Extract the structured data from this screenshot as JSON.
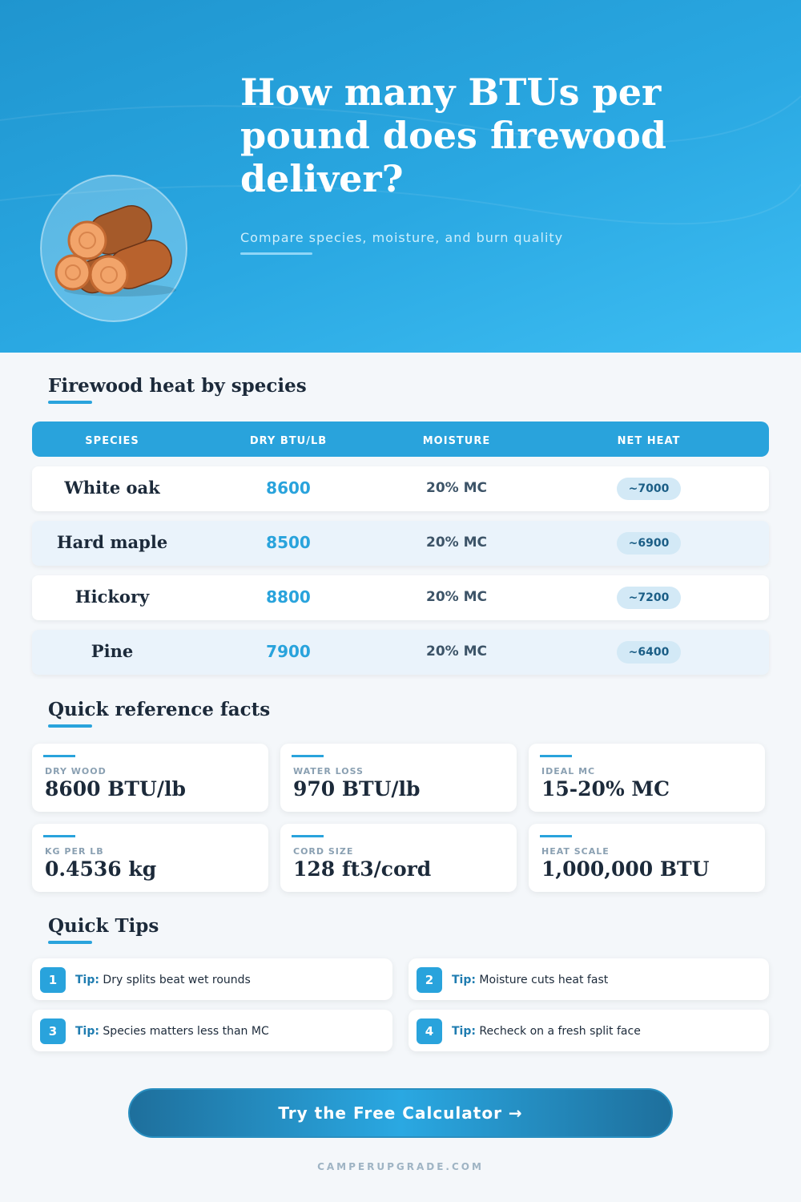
{
  "header": {
    "title": "How many BTUs per pound does firewood deliver?",
    "subtitle": "Compare species, moisture, and burn quality"
  },
  "table": {
    "heading": "Firewood heat by species",
    "columns": [
      "SPECIES",
      "DRY BTU/LB",
      "MOISTURE",
      "NET HEAT"
    ],
    "rows": [
      [
        "White oak",
        8600,
        "20% MC",
        "~7000"
      ],
      [
        "Hard maple",
        8500,
        "20% MC",
        "~6900"
      ],
      [
        "Hickory",
        8800,
        "20% MC",
        "~7200"
      ],
      [
        "Pine",
        7900,
        "20% MC",
        "~6400"
      ]
    ]
  },
  "facts": {
    "heading": "Quick reference facts",
    "items": [
      {
        "label": "DRY WOOD",
        "value": "8600 BTU/lb"
      },
      {
        "label": "WATER LOSS",
        "value": "970 BTU/lb"
      },
      {
        "label": "IDEAL MC",
        "value": "15-20% MC"
      },
      {
        "label": "KG PER LB",
        "value": "0.4536 kg"
      },
      {
        "label": "CORD SIZE",
        "value": "128 ft3/cord"
      },
      {
        "label": "HEAT SCALE",
        "value": "1,000,000 BTU"
      }
    ]
  },
  "tips": {
    "heading": "Quick Tips",
    "items": [
      {
        "number": 1,
        "label": "Tip:",
        "text": "Dry splits beat wet rounds"
      },
      {
        "number": 2,
        "label": "Tip:",
        "text": "Moisture cuts heat fast"
      },
      {
        "number": 3,
        "label": "Tip:",
        "text": "Species matters less than MC"
      },
      {
        "number": 4,
        "label": "Tip:",
        "text": "Recheck on a fresh split face"
      }
    ]
  },
  "cta": "Try the Free Calculator →",
  "footer": "CAMPERUPGRADE.COM"
}
